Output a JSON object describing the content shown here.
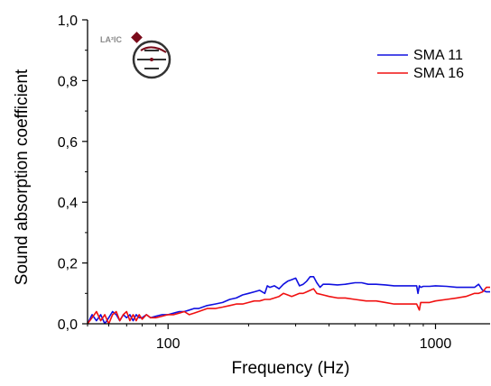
{
  "colors": {
    "sma11": "#1010e0",
    "sma16": "#f01010",
    "axis": "#000000"
  },
  "logo": {
    "text": "LA²IC",
    "icon": "laboratory-logo-icon"
  },
  "chart_data": {
    "type": "line",
    "xlabel": "Frequency (Hz)",
    "ylabel": "Sound absorption coefficient",
    "x_scale": "log",
    "xlim": [
      50,
      1600
    ],
    "ylim": [
      0,
      1.0
    ],
    "x_ticks": [
      100,
      1000
    ],
    "x_tick_labels": [
      "100",
      "1000"
    ],
    "y_ticks": [
      0,
      0.2,
      0.4,
      0.6,
      0.8,
      1.0
    ],
    "y_tick_labels": [
      "0,0",
      "0,2",
      "0,4",
      "0,6",
      "0,8",
      "1,0"
    ],
    "grid": false,
    "legend": "top-right",
    "series": [
      {
        "name": "SMA 11",
        "color": "#1010e0",
        "x": [
          50,
          52,
          54,
          56,
          58,
          60,
          62,
          64,
          66,
          68,
          70,
          72,
          74,
          76,
          78,
          80,
          83,
          86,
          90,
          95,
          100,
          105,
          110,
          115,
          120,
          125,
          130,
          140,
          150,
          160,
          170,
          180,
          190,
          200,
          210,
          220,
          230,
          235,
          240,
          250,
          260,
          270,
          280,
          290,
          300,
          310,
          320,
          330,
          340,
          350,
          360,
          370,
          380,
          400,
          430,
          460,
          500,
          530,
          560,
          600,
          650,
          700,
          750,
          800,
          850,
          860,
          870,
          880,
          900,
          950,
          1000,
          1100,
          1200,
          1300,
          1400,
          1450,
          1500,
          1550,
          1600
        ],
        "y": [
          0.0,
          0.03,
          0.01,
          0.03,
          0.0,
          0.02,
          0.04,
          0.03,
          0.01,
          0.03,
          0.02,
          0.03,
          0.01,
          0.03,
          0.02,
          0.02,
          0.03,
          0.02,
          0.025,
          0.03,
          0.03,
          0.035,
          0.04,
          0.04,
          0.045,
          0.05,
          0.05,
          0.06,
          0.065,
          0.07,
          0.08,
          0.085,
          0.095,
          0.1,
          0.105,
          0.11,
          0.1,
          0.125,
          0.12,
          0.125,
          0.115,
          0.13,
          0.14,
          0.145,
          0.15,
          0.125,
          0.13,
          0.14,
          0.155,
          0.155,
          0.135,
          0.12,
          0.13,
          0.13,
          0.128,
          0.13,
          0.135,
          0.135,
          0.13,
          0.13,
          0.128,
          0.125,
          0.125,
          0.125,
          0.125,
          0.1,
          0.125,
          0.12,
          0.123,
          0.123,
          0.125,
          0.123,
          0.12,
          0.12,
          0.12,
          0.13,
          0.11,
          0.105,
          0.105
        ]
      },
      {
        "name": "SMA 16",
        "color": "#f01010",
        "x": [
          50,
          52,
          54,
          56,
          58,
          60,
          62,
          64,
          66,
          68,
          70,
          72,
          74,
          76,
          78,
          80,
          83,
          86,
          90,
          95,
          100,
          105,
          110,
          115,
          120,
          125,
          130,
          140,
          150,
          160,
          170,
          180,
          190,
          200,
          210,
          220,
          230,
          240,
          250,
          260,
          270,
          280,
          290,
          300,
          310,
          320,
          330,
          340,
          350,
          360,
          380,
          400,
          430,
          460,
          500,
          550,
          600,
          650,
          700,
          750,
          800,
          850,
          870,
          880,
          900,
          950,
          1000,
          1100,
          1200,
          1300,
          1400,
          1450,
          1500,
          1550,
          1600
        ],
        "y": [
          0.0,
          0.02,
          0.04,
          0.01,
          0.03,
          0.0,
          0.03,
          0.04,
          0.01,
          0.03,
          0.04,
          0.01,
          0.03,
          0.01,
          0.03,
          0.015,
          0.03,
          0.02,
          0.02,
          0.025,
          0.03,
          0.03,
          0.035,
          0.04,
          0.03,
          0.035,
          0.04,
          0.05,
          0.05,
          0.055,
          0.06,
          0.065,
          0.065,
          0.07,
          0.075,
          0.075,
          0.08,
          0.08,
          0.085,
          0.09,
          0.1,
          0.095,
          0.09,
          0.095,
          0.1,
          0.1,
          0.105,
          0.11,
          0.115,
          0.1,
          0.095,
          0.09,
          0.085,
          0.085,
          0.08,
          0.075,
          0.075,
          0.07,
          0.065,
          0.065,
          0.065,
          0.065,
          0.045,
          0.07,
          0.07,
          0.07,
          0.075,
          0.08,
          0.085,
          0.09,
          0.1,
          0.1,
          0.105,
          0.12,
          0.12
        ]
      }
    ]
  }
}
